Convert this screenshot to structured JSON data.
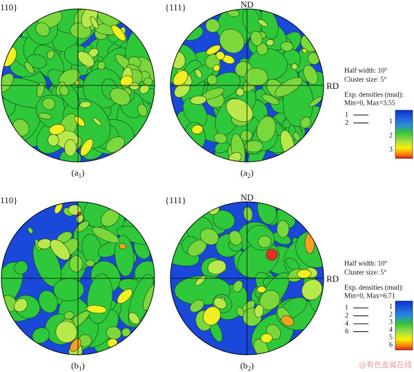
{
  "rows": [
    {
      "panels": [
        {
          "pole": "{110}",
          "label_parts": [
            "(a",
            "1",
            ")"
          ]
        },
        {
          "pole": "{111}",
          "label_parts": [
            "(a",
            "2",
            ")"
          ]
        }
      ],
      "nd": "ND",
      "rd": "RD",
      "legend": {
        "half_width": "Half width: 10°",
        "cluster_size": "Cluster size: 5°",
        "densities_title": "Exp. densities (mud):",
        "min_max": "Min=0, Max=3.55",
        "contour_levels": [
          "1",
          "2"
        ],
        "colorbar_labels": [
          "1",
          "2",
          "3"
        ]
      }
    },
    {
      "panels": [
        {
          "pole": "{110}",
          "label_parts": [
            "(b",
            "1",
            ")"
          ]
        },
        {
          "pole": "{111}",
          "label_parts": [
            "(b",
            "2",
            ")"
          ]
        }
      ],
      "nd": "ND",
      "rd": "RD",
      "legend": {
        "half_width": "Half width: 10°",
        "cluster_size": "Cluster size: 5°",
        "densities_title": "Exp. densities (mud):",
        "min_max": "Min=0, Max=6.71",
        "contour_levels": [
          "1",
          "2",
          "4",
          "6"
        ],
        "colorbar_labels": [
          "1",
          "2",
          "3",
          "4",
          "5",
          "6"
        ]
      }
    }
  ],
  "watermark": "@有色金属在线"
}
